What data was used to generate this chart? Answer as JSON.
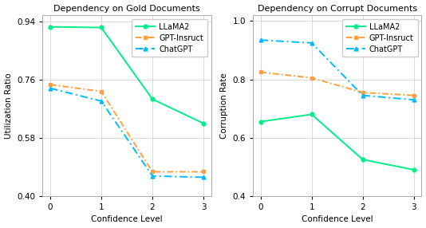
{
  "gold": {
    "title": "Dependency on Gold Documents",
    "ylabel": "Utilization Ratio",
    "xlabel": "Confidence Level",
    "ylim": [
      0.4,
      0.96
    ],
    "yticks": [
      0.4,
      0.58,
      0.76,
      0.94
    ],
    "yticklabels": [
      "0.40",
      "0.58",
      "0.76",
      "0.94"
    ],
    "xticks": [
      0,
      1,
      2,
      3
    ],
    "llama2": [
      0.924,
      0.922,
      0.7,
      0.625
    ],
    "gpt_instruct": [
      0.745,
      0.724,
      0.475,
      0.475
    ],
    "chatgpt": [
      0.734,
      0.694,
      0.462,
      0.458
    ]
  },
  "corrupt": {
    "title": "Dependency on Corrupt Documents",
    "ylabel": "Corruption Rate",
    "xlabel": "Confidence Level",
    "ylim": [
      0.4,
      1.02
    ],
    "yticks": [
      0.4,
      0.6,
      0.8,
      1.0
    ],
    "yticklabels": [
      "0.4",
      "0.6",
      "0.8",
      "1.0"
    ],
    "xticks": [
      0,
      1,
      2,
      3
    ],
    "llama2": [
      0.655,
      0.68,
      0.525,
      0.49
    ],
    "gpt_instruct": [
      0.825,
      0.805,
      0.755,
      0.745
    ],
    "chatgpt": [
      0.935,
      0.925,
      0.745,
      0.73
    ]
  },
  "colors": {
    "llama2": "#00EE88",
    "gpt_instruct": "#FFA040",
    "chatgpt": "#00BBFF"
  },
  "figsize": [
    5.34,
    2.86
  ],
  "dpi": 100
}
